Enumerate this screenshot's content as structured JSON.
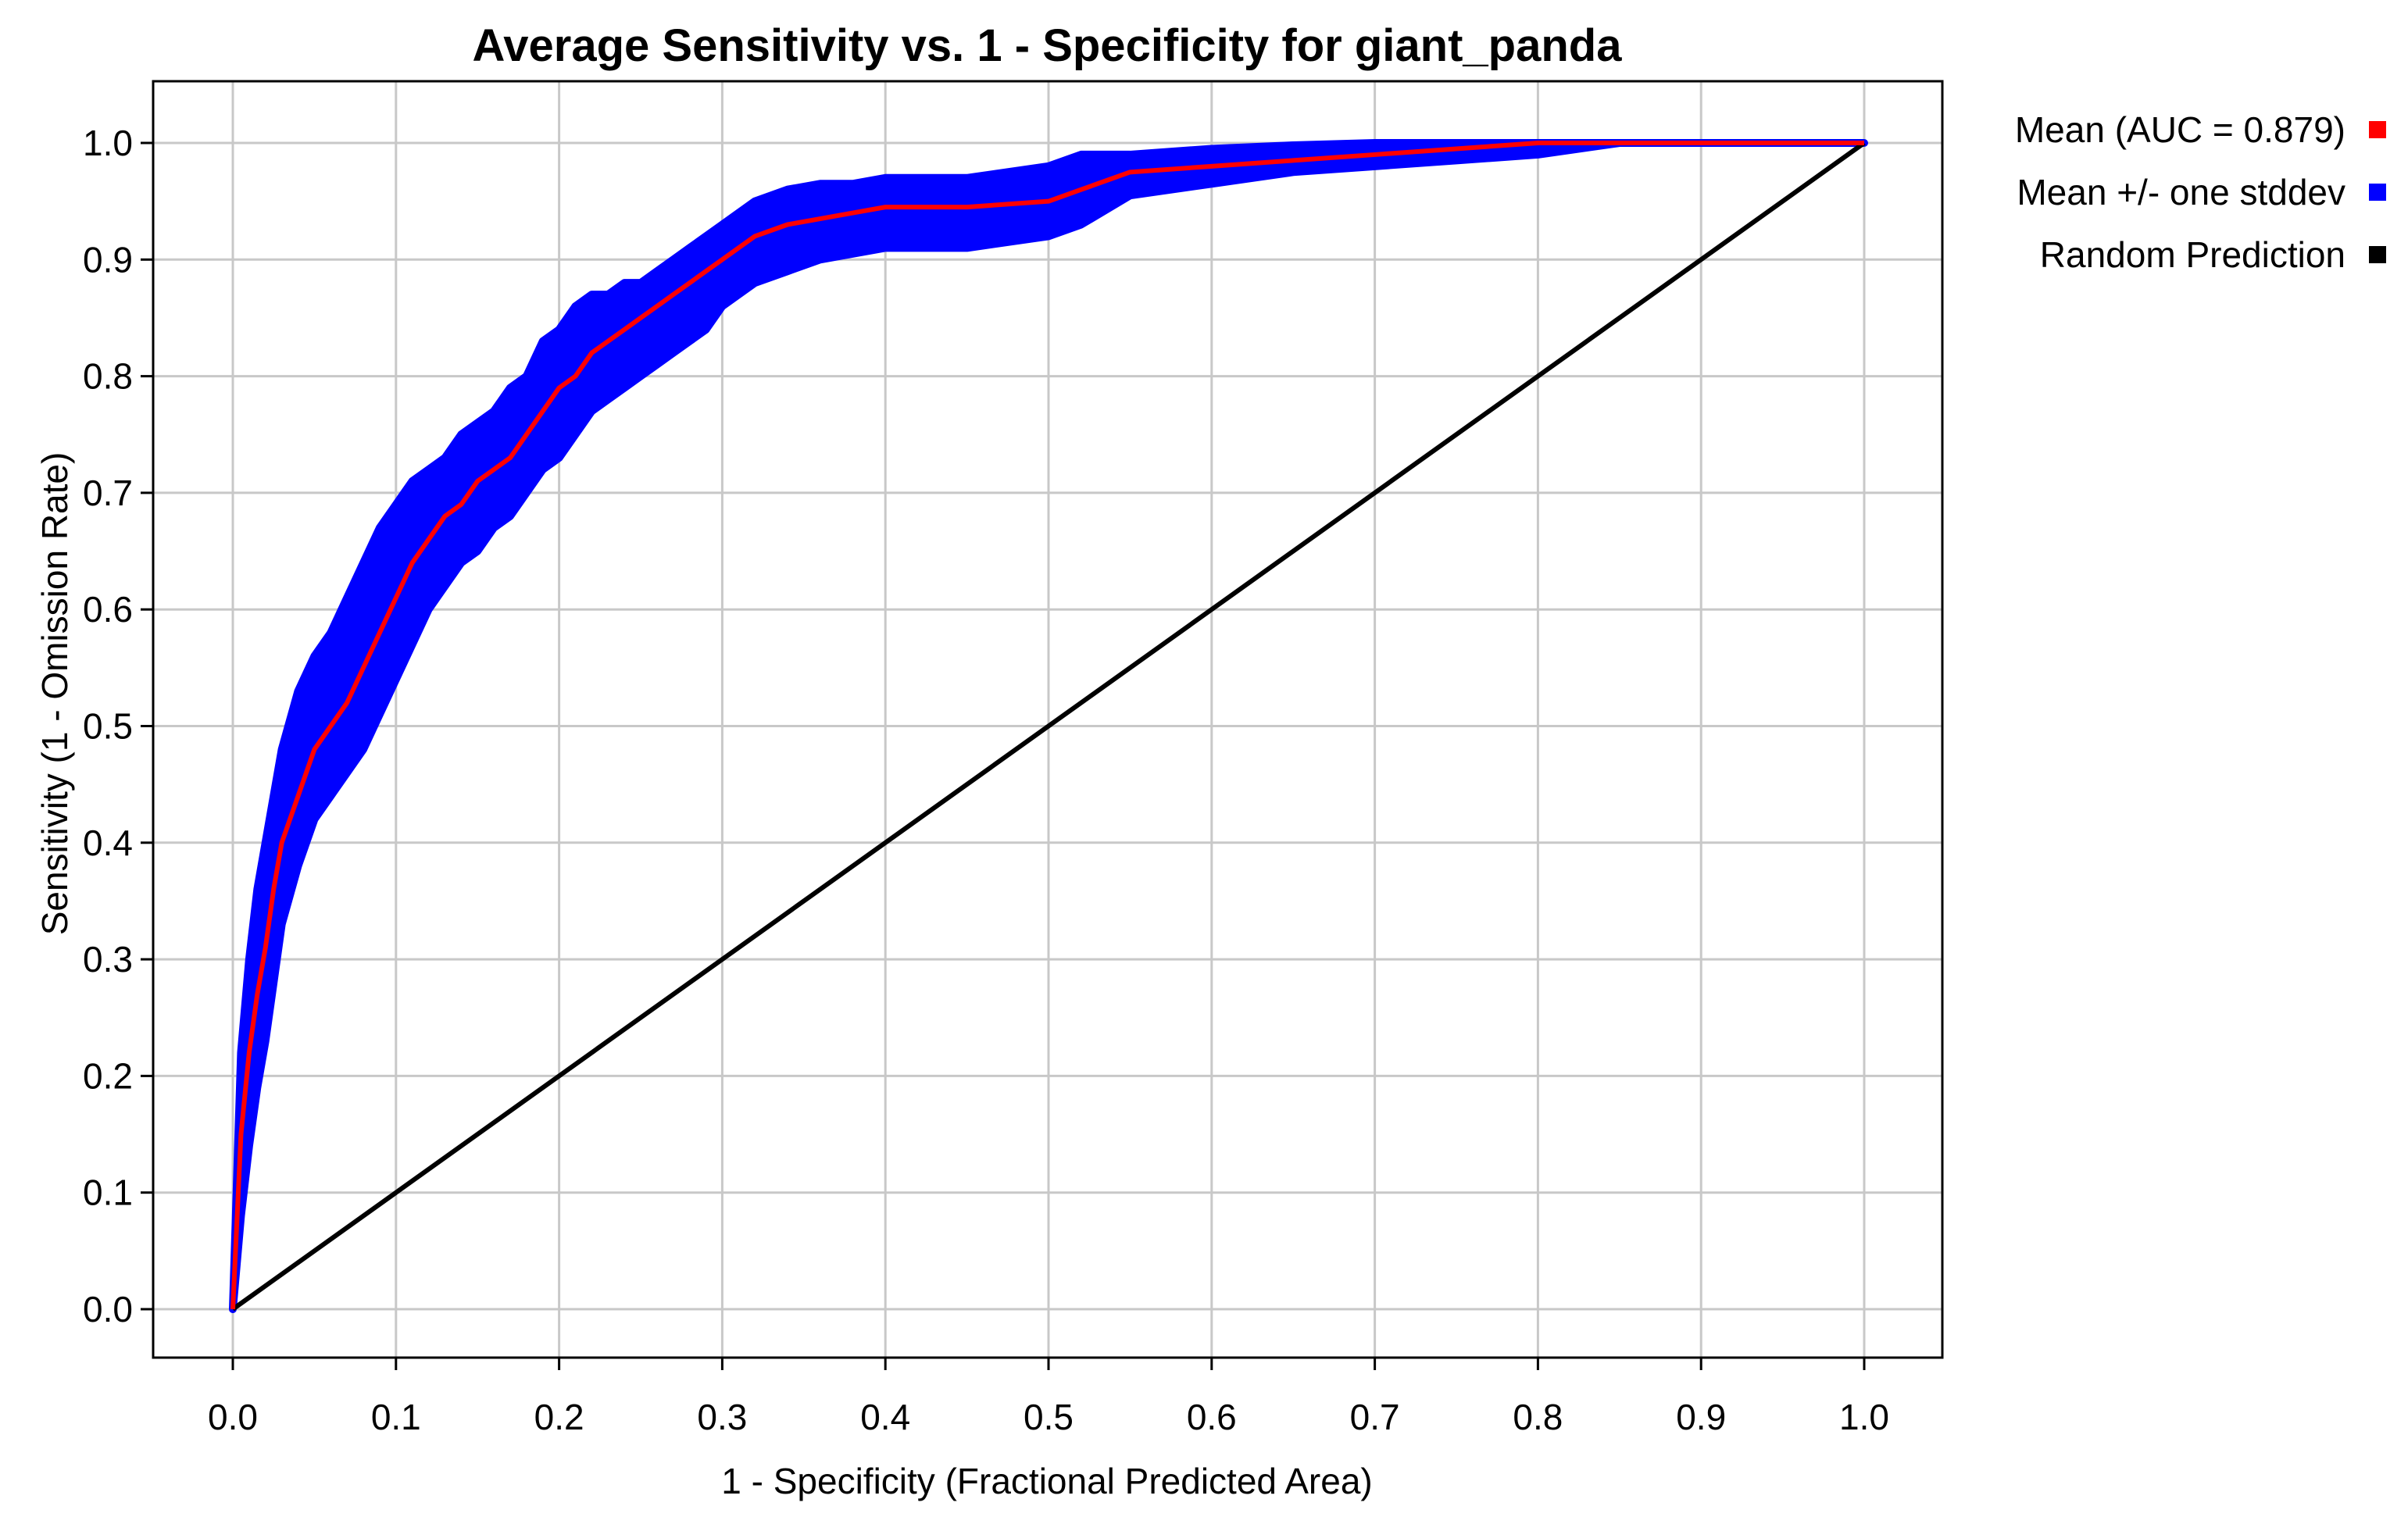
{
  "chart_data": {
    "type": "line",
    "title": "Average Sensitivity vs. 1 - Specificity for giant_panda",
    "xlabel": "1 - Specificity (Fractional Predicted Area)",
    "ylabel": "Sensitivity (1 - Omission Rate)",
    "xlim": [
      0.0,
      1.0
    ],
    "ylim": [
      0.0,
      1.0
    ],
    "xticks": [
      "0.0",
      "0.1",
      "0.2",
      "0.3",
      "0.4",
      "0.5",
      "0.6",
      "0.7",
      "0.8",
      "0.9",
      "1.0"
    ],
    "yticks": [
      "0.0",
      "0.1",
      "0.2",
      "0.3",
      "0.4",
      "0.5",
      "0.6",
      "0.7",
      "0.8",
      "0.9",
      "1.0"
    ],
    "grid": true,
    "legend_position": "right",
    "series": [
      {
        "name": "Mean (AUC = 0.879)",
        "color": "#ff0000",
        "x": [
          0.0,
          0.005,
          0.01,
          0.015,
          0.02,
          0.025,
          0.03,
          0.04,
          0.05,
          0.06,
          0.07,
          0.08,
          0.09,
          0.1,
          0.11,
          0.12,
          0.13,
          0.14,
          0.15,
          0.16,
          0.17,
          0.18,
          0.19,
          0.2,
          0.21,
          0.22,
          0.23,
          0.24,
          0.25,
          0.26,
          0.27,
          0.28,
          0.29,
          0.3,
          0.32,
          0.34,
          0.36,
          0.38,
          0.4,
          0.45,
          0.5,
          0.52,
          0.55,
          0.6,
          0.65,
          0.7,
          0.75,
          0.8,
          0.85,
          0.9,
          1.0
        ],
        "y": [
          0.0,
          0.15,
          0.22,
          0.27,
          0.31,
          0.36,
          0.4,
          0.44,
          0.48,
          0.5,
          0.52,
          0.55,
          0.58,
          0.61,
          0.64,
          0.66,
          0.68,
          0.69,
          0.71,
          0.72,
          0.73,
          0.75,
          0.77,
          0.79,
          0.8,
          0.82,
          0.83,
          0.84,
          0.85,
          0.86,
          0.87,
          0.88,
          0.89,
          0.9,
          0.92,
          0.93,
          0.935,
          0.94,
          0.945,
          0.945,
          0.95,
          0.96,
          0.975,
          0.98,
          0.985,
          0.99,
          0.995,
          1.0,
          1.0,
          1.0,
          1.0
        ]
      },
      {
        "name": "Mean +/- one stddev",
        "color": "#0000ff",
        "x": [
          0.0,
          0.005,
          0.01,
          0.015,
          0.02,
          0.025,
          0.03,
          0.04,
          0.05,
          0.06,
          0.07,
          0.08,
          0.09,
          0.1,
          0.11,
          0.12,
          0.13,
          0.14,
          0.15,
          0.16,
          0.17,
          0.18,
          0.19,
          0.2,
          0.21,
          0.22,
          0.23,
          0.24,
          0.25,
          0.26,
          0.27,
          0.28,
          0.29,
          0.3,
          0.32,
          0.34,
          0.36,
          0.38,
          0.4,
          0.45,
          0.5,
          0.52,
          0.55,
          0.6,
          0.65,
          0.7,
          0.75,
          0.8,
          0.85,
          0.9,
          1.0
        ],
        "upper": [
          0.0,
          0.22,
          0.3,
          0.36,
          0.4,
          0.44,
          0.48,
          0.53,
          0.56,
          0.58,
          0.61,
          0.64,
          0.67,
          0.69,
          0.71,
          0.72,
          0.73,
          0.75,
          0.76,
          0.77,
          0.79,
          0.8,
          0.83,
          0.84,
          0.86,
          0.87,
          0.87,
          0.88,
          0.88,
          0.89,
          0.9,
          0.91,
          0.92,
          0.93,
          0.95,
          0.96,
          0.965,
          0.965,
          0.97,
          0.97,
          0.98,
          0.99,
          0.99,
          0.995,
          0.998,
          1.0,
          1.0,
          1.0,
          1.0,
          1.0,
          1.0
        ],
        "lower": [
          0.0,
          0.08,
          0.14,
          0.19,
          0.23,
          0.28,
          0.33,
          0.38,
          0.42,
          0.44,
          0.46,
          0.48,
          0.51,
          0.54,
          0.57,
          0.6,
          0.62,
          0.64,
          0.65,
          0.67,
          0.68,
          0.7,
          0.72,
          0.73,
          0.75,
          0.77,
          0.78,
          0.79,
          0.8,
          0.81,
          0.82,
          0.83,
          0.84,
          0.86,
          0.88,
          0.89,
          0.9,
          0.905,
          0.91,
          0.91,
          0.92,
          0.93,
          0.955,
          0.965,
          0.975,
          0.98,
          0.985,
          0.99,
          1.0,
          1.0,
          1.0
        ]
      },
      {
        "name": "Random Prediction",
        "color": "#000000",
        "x": [
          0.0,
          1.0
        ],
        "y": [
          0.0,
          1.0
        ]
      }
    ]
  }
}
